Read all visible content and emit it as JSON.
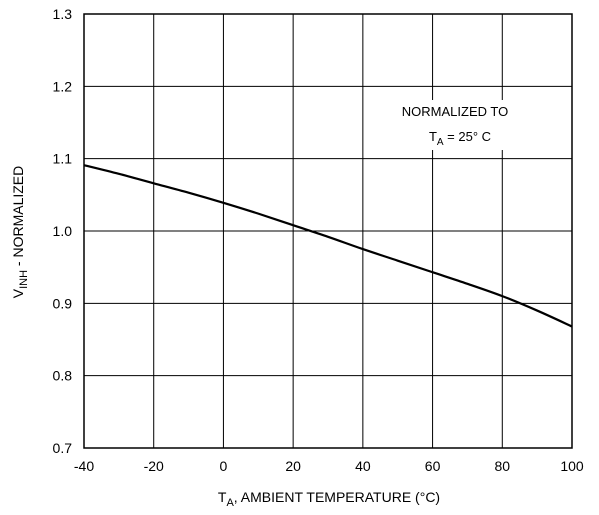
{
  "chart_data": {
    "type": "line",
    "xlabel_main": "T",
    "xlabel_sub": "A",
    "xlabel_rest": ", AMBIENT TEMPERATURE (°C)",
    "ylabel_main": "V",
    "ylabel_sub": "INH",
    "ylabel_rest": " - NORMALIZED",
    "xlim": [
      -40,
      100
    ],
    "ylim": [
      0.7,
      1.3
    ],
    "x_ticks": [
      -40,
      -20,
      0,
      20,
      40,
      60,
      80,
      100
    ],
    "x_tick_labels": [
      "-40",
      "-20",
      "0",
      "20",
      "40",
      "60",
      "80",
      "100"
    ],
    "y_ticks": [
      0.7,
      0.8,
      0.9,
      1.0,
      1.1,
      1.2,
      1.3
    ],
    "y_tick_labels": [
      "0.7",
      "0.8",
      "0.9",
      "1.0",
      "1.1",
      "1.2",
      "1.3"
    ],
    "grid": true,
    "annotation": {
      "line1": "NORMALIZED TO",
      "line2_main": "T",
      "line2_sub": "A",
      "line2_rest": " = 25° C"
    },
    "series": [
      {
        "x": [
          -40,
          -30,
          -20,
          -10,
          0,
          10,
          20,
          30,
          40,
          50,
          60,
          70,
          80,
          90,
          100
        ],
        "y": [
          1.091,
          1.079,
          1.066,
          1.053,
          1.039,
          1.024,
          1.008,
          0.992,
          0.975,
          0.959,
          0.943,
          0.927,
          0.91,
          0.89,
          0.868
        ]
      }
    ]
  }
}
